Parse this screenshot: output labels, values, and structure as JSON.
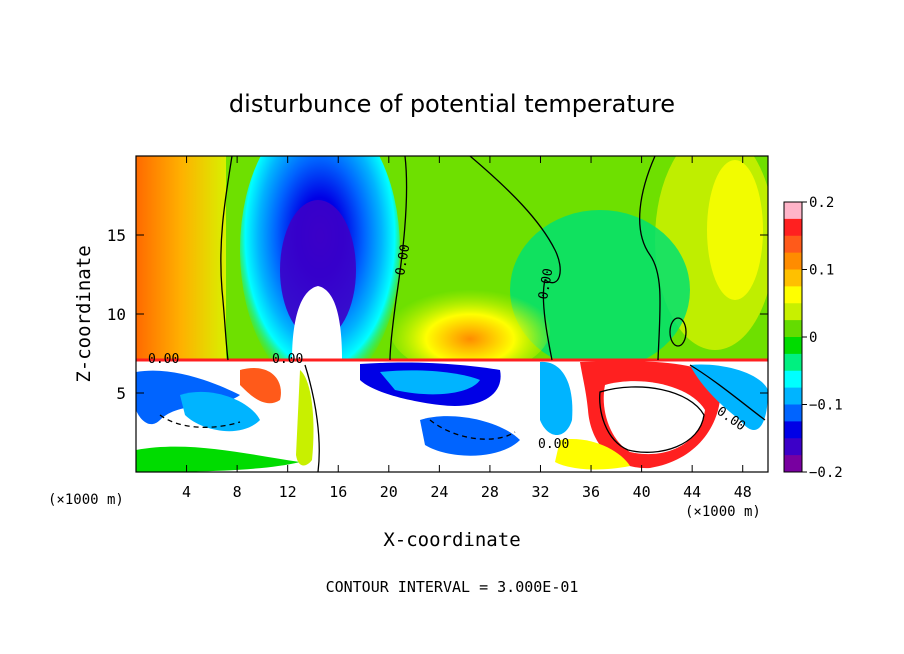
{
  "chart_data": {
    "type": "heatmap",
    "title": "disturbunce of potential temperature",
    "xlabel": "X-coordinate",
    "ylabel": "Z-coordinate",
    "x_unit": "(×1000 m)",
    "x_unit_right": "(×1000 m)",
    "xlim": [
      0,
      50
    ],
    "ylim": [
      0,
      20
    ],
    "xticks": [
      4,
      8,
      12,
      16,
      20,
      24,
      28,
      32,
      36,
      40,
      44,
      48
    ],
    "yticks": [
      5,
      10,
      15
    ],
    "colorbar": {
      "range": [
        -0.2,
        0.2
      ],
      "tick_values": [
        0.2,
        0.1,
        0,
        -0.1,
        -0.2
      ],
      "tick_labels": [
        "0.2",
        "0.1",
        "0",
        "−0.1",
        "−0.2"
      ],
      "colors": [
        "#ffb4c8",
        "#ff2020",
        "#ff5a1a",
        "#ff8c00",
        "#ffc000",
        "#ffff00",
        "#c8f000",
        "#64dc00",
        "#00dc00",
        "#00f080",
        "#00ffff",
        "#00b4ff",
        "#0064ff",
        "#0000e6",
        "#3c00c8",
        "#7800a0"
      ]
    },
    "contour_labels": [
      "0.00",
      "0.00",
      "0.00",
      "0.00",
      "0.00",
      "0.00"
    ],
    "footer": "CONTOUR INTERVAL = 3.000E-01"
  }
}
